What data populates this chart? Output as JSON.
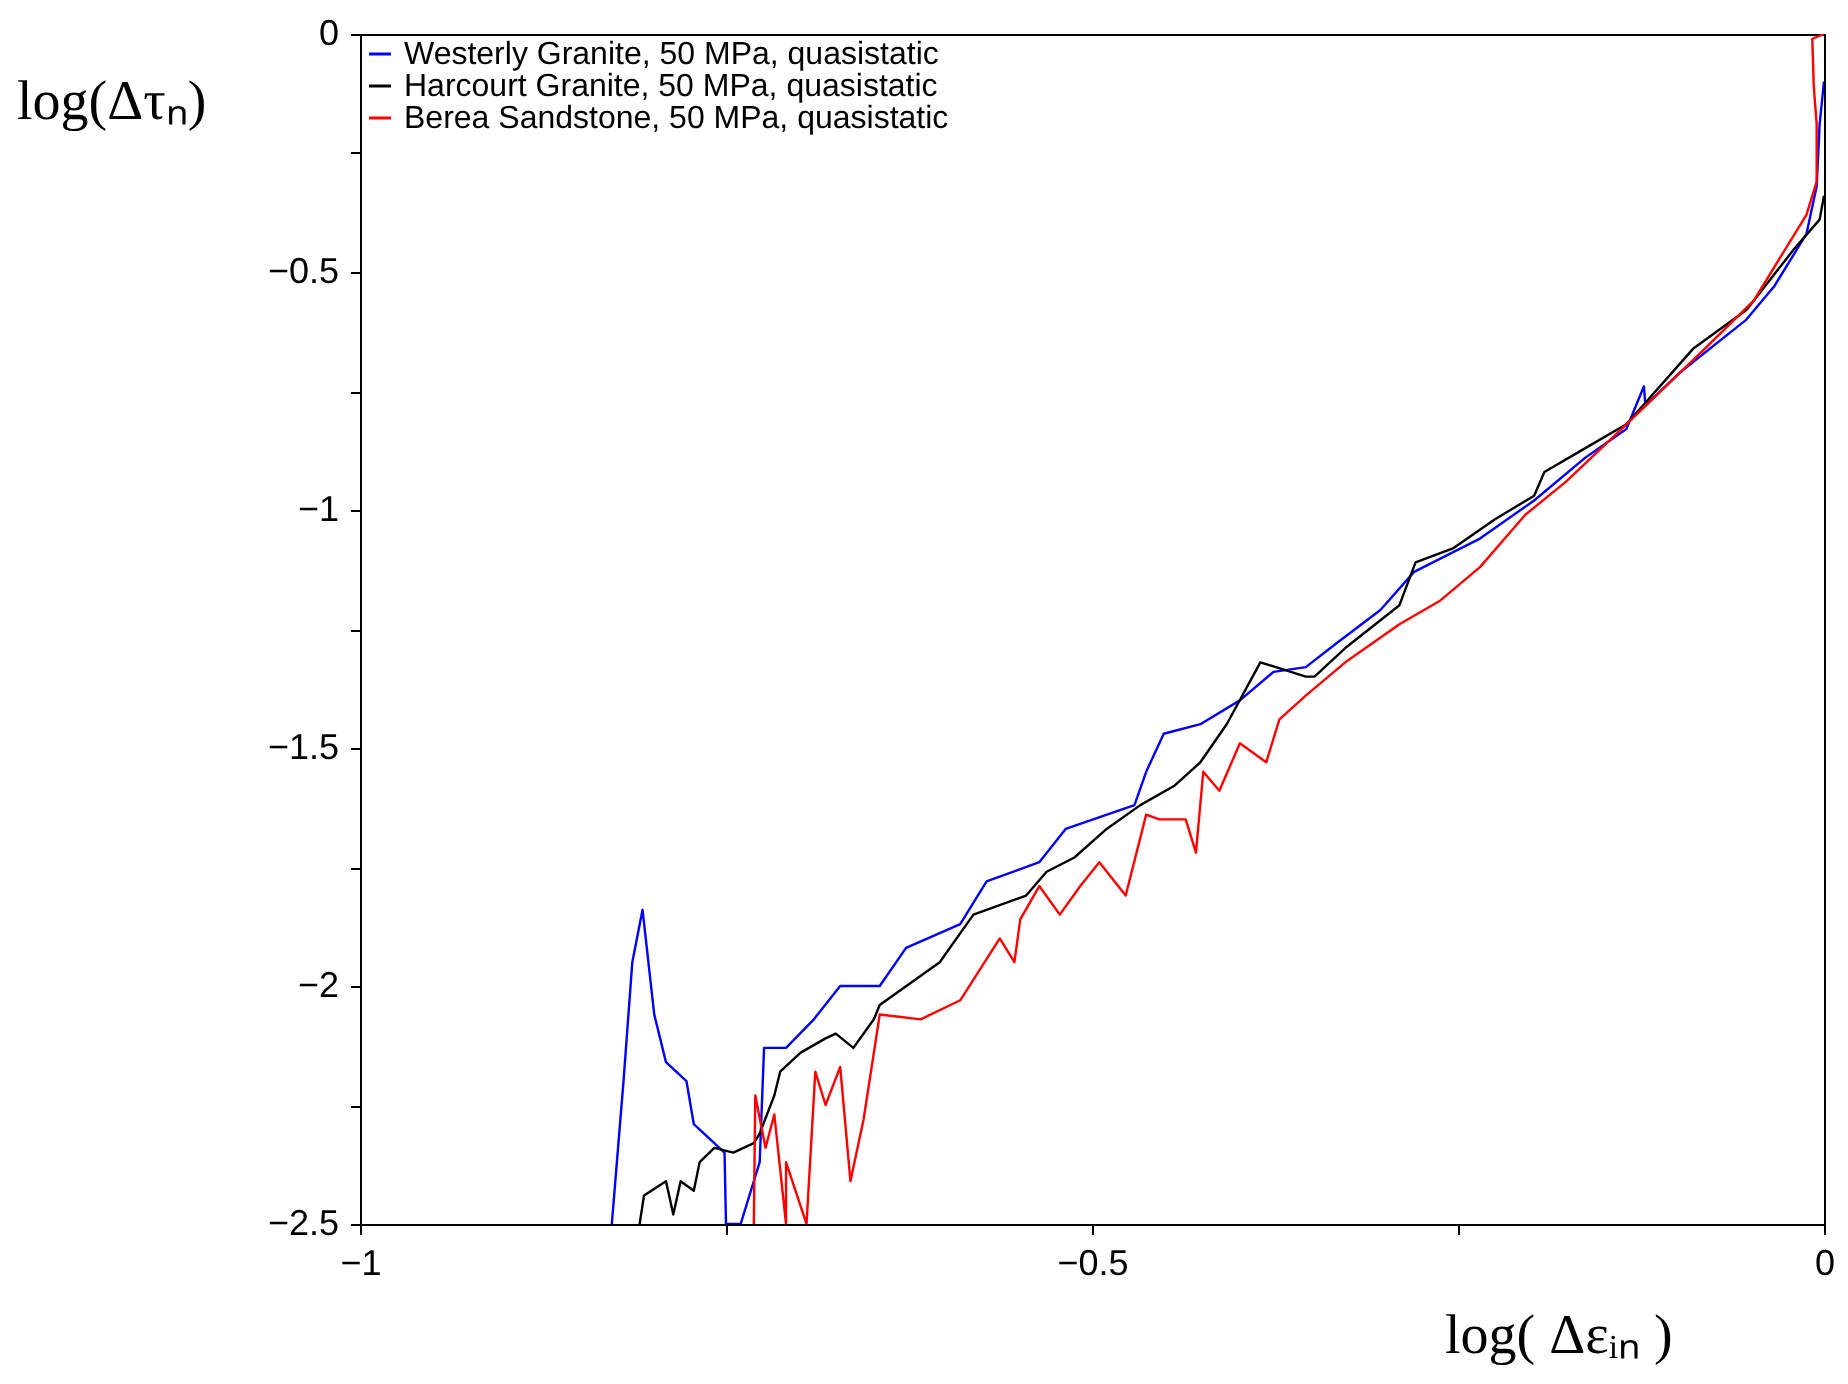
{
  "chart_data": {
    "type": "line",
    "xlabel": "log( Δεᵢₙ )",
    "ylabel": "log(Δτₙ)",
    "xlim": [
      -1,
      0
    ],
    "ylim": [
      -2.5,
      0
    ],
    "xticks": [
      -1,
      {
        "value": -0.75,
        "label": null
      },
      -0.5,
      {
        "value": -0.25,
        "label": null
      },
      0
    ],
    "yticks": [
      -2.5,
      {
        "value": -2.25,
        "label": null
      },
      -2,
      {
        "value": -1.75,
        "label": null
      },
      -1.5,
      {
        "value": -1.25,
        "label": null
      },
      -1,
      {
        "value": -0.75,
        "label": null
      },
      -0.5,
      {
        "value": -0.25,
        "label": null
      },
      0
    ],
    "grid": false,
    "legend": "top left",
    "line_style": "solid",
    "marker": "none",
    "series": [
      {
        "name": "Westerly Granite, 50 MPa, quasistatic",
        "color": "#0000ff",
        "x": [
          -0.828,
          -0.82,
          -0.814,
          -0.807,
          -0.799,
          -0.791,
          -0.777,
          -0.772,
          -0.758,
          -0.751,
          -0.75,
          -0.74,
          -0.727,
          -0.724,
          -0.709,
          -0.69,
          -0.672,
          -0.645,
          -0.627,
          -0.59,
          -0.572,
          -0.536,
          -0.518,
          -0.471,
          -0.463,
          -0.451,
          -0.426,
          -0.399,
          -0.376,
          -0.354,
          -0.333,
          -0.303,
          -0.28,
          -0.235,
          -0.198,
          -0.163,
          -0.135,
          -0.123,
          -0.122,
          -0.098,
          -0.053,
          -0.034,
          -0.012,
          -0.005,
          -0.003,
          0.0
        ],
        "values": [
          -2.5,
          -2.2,
          -1.95,
          -1.84,
          -2.06,
          -2.16,
          -2.2,
          -2.29,
          -2.33,
          -2.35,
          -2.5,
          -2.5,
          -2.37,
          -2.13,
          -2.13,
          -2.07,
          -2.0,
          -2.0,
          -1.92,
          -1.87,
          -1.78,
          -1.74,
          -1.67,
          -1.62,
          -1.55,
          -1.47,
          -1.45,
          -1.4,
          -1.34,
          -1.33,
          -1.28,
          -1.21,
          -1.13,
          -1.06,
          -0.98,
          -0.89,
          -0.83,
          -0.74,
          -0.78,
          -0.71,
          -0.6,
          -0.53,
          -0.42,
          -0.32,
          -0.19,
          -0.1
        ]
      },
      {
        "name": "Harcourt Granite, 50 MPa, quasistatic",
        "color": "#000000",
        "x": [
          -0.809,
          -0.806,
          -0.791,
          -0.786,
          -0.781,
          -0.772,
          -0.768,
          -0.758,
          -0.745,
          -0.731,
          -0.727,
          -0.717,
          -0.713,
          -0.699,
          -0.682,
          -0.675,
          -0.663,
          -0.649,
          -0.645,
          -0.604,
          -0.581,
          -0.545,
          -0.531,
          -0.512,
          -0.49,
          -0.467,
          -0.444,
          -0.426,
          -0.408,
          -0.385,
          -0.354,
          -0.348,
          -0.327,
          -0.29,
          -0.279,
          -0.253,
          -0.225,
          -0.198,
          -0.191,
          -0.163,
          -0.135,
          -0.089,
          -0.053,
          -0.02,
          -0.003,
          0.0
        ],
        "values": [
          -2.5,
          -2.44,
          -2.41,
          -2.48,
          -2.41,
          -2.43,
          -2.37,
          -2.34,
          -2.35,
          -2.33,
          -2.31,
          -2.23,
          -2.18,
          -2.14,
          -2.11,
          -2.1,
          -2.13,
          -2.07,
          -2.04,
          -1.95,
          -1.85,
          -1.81,
          -1.76,
          -1.73,
          -1.67,
          -1.62,
          -1.58,
          -1.53,
          -1.45,
          -1.32,
          -1.35,
          -1.35,
          -1.29,
          -1.2,
          -1.11,
          -1.08,
          -1.02,
          -0.97,
          -0.92,
          -0.87,
          -0.82,
          -0.66,
          -0.58,
          -0.45,
          -0.39,
          -0.34
        ]
      },
      {
        "name": "Berea Sandstone, 50 MPa, quasistatic",
        "color": "#ff0000",
        "x": [
          -0.731,
          -0.73,
          -0.723,
          -0.717,
          -0.709,
          -0.709,
          -0.695,
          -0.689,
          -0.682,
          -0.672,
          -0.665,
          -0.656,
          -0.645,
          -0.617,
          -0.59,
          -0.563,
          -0.553,
          -0.549,
          -0.536,
          -0.522,
          -0.508,
          -0.495,
          -0.477,
          -0.463,
          -0.454,
          -0.436,
          -0.429,
          -0.424,
          -0.413,
          -0.399,
          -0.381,
          -0.372,
          -0.354,
          -0.327,
          -0.29,
          -0.262,
          -0.235,
          -0.204,
          -0.176,
          -0.135,
          -0.081,
          -0.048,
          -0.03,
          -0.012,
          -0.005,
          -0.005,
          -0.007,
          -0.008,
          0.0
        ],
        "values": [
          -2.5,
          -2.23,
          -2.34,
          -2.27,
          -2.5,
          -2.37,
          -2.5,
          -2.18,
          -2.25,
          -2.17,
          -2.41,
          -2.28,
          -2.06,
          -2.07,
          -2.03,
          -1.9,
          -1.95,
          -1.86,
          -1.79,
          -1.85,
          -1.79,
          -1.74,
          -1.81,
          -1.64,
          -1.65,
          -1.65,
          -1.72,
          -1.55,
          -1.59,
          -1.49,
          -1.53,
          -1.44,
          -1.39,
          -1.32,
          -1.24,
          -1.19,
          -1.12,
          -1.01,
          -0.94,
          -0.82,
          -0.66,
          -0.56,
          -0.47,
          -0.38,
          -0.31,
          -0.19,
          -0.11,
          -0.01,
          0.0
        ]
      }
    ]
  }
}
